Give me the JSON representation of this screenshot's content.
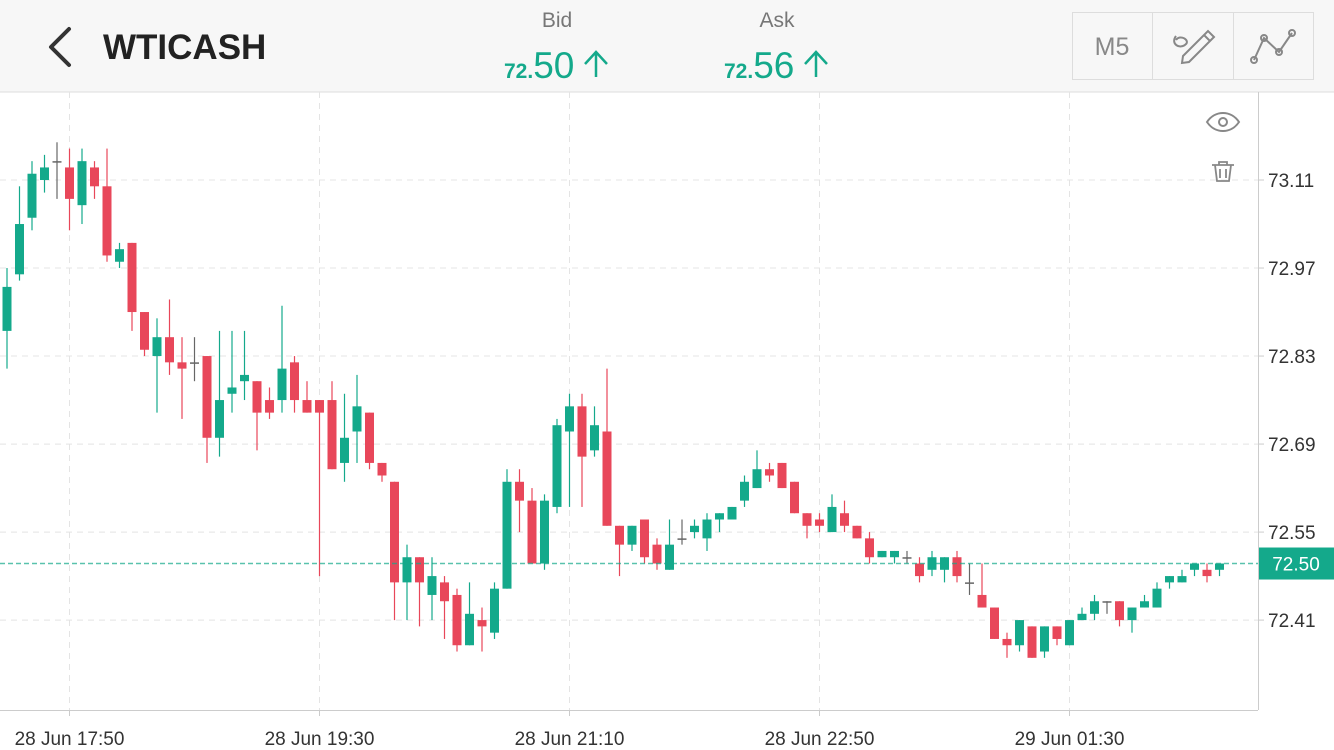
{
  "header": {
    "title": "WTICASH",
    "quotes": [
      {
        "label": "Bid",
        "prefix": "72.",
        "digits": "50"
      },
      {
        "label": "Ask",
        "prefix": "72.",
        "digits": "56"
      }
    ],
    "timeframe": "M5"
  },
  "chart_data": {
    "type": "candlestick",
    "categories": [
      null,
      null,
      null,
      null,
      null,
      "28 Jun 17:50",
      null,
      null,
      null,
      null,
      null,
      null,
      null,
      null,
      null,
      null,
      null,
      null,
      null,
      null,
      null,
      null,
      null,
      null,
      null,
      "28 Jun 19:30",
      null,
      null,
      null,
      null,
      null,
      null,
      null,
      null,
      null,
      null,
      null,
      null,
      null,
      null,
      null,
      null,
      null,
      null,
      null,
      "28 Jun 21:10",
      null,
      null,
      null,
      null,
      null,
      null,
      null,
      null,
      null,
      null,
      null,
      null,
      null,
      null,
      null,
      null,
      null,
      null,
      null,
      "28 Jun 22:50",
      null,
      null,
      null,
      null,
      null,
      null,
      null,
      null,
      null,
      null,
      null,
      null,
      null,
      null,
      null,
      null,
      null,
      null,
      null,
      "29 Jun 01:30",
      null,
      null,
      null,
      null,
      null,
      null,
      null,
      null,
      null,
      null,
      null,
      null
    ],
    "open": [
      72.87,
      72.96,
      73.05,
      73.11,
      73.14,
      73.13,
      73.07,
      73.13,
      73.1,
      72.98,
      73.01,
      72.9,
      72.83,
      72.86,
      72.82,
      72.82,
      72.83,
      72.7,
      72.77,
      72.79,
      72.79,
      72.76,
      72.76,
      72.82,
      72.76,
      72.76,
      72.76,
      72.66,
      72.71,
      72.74,
      72.66,
      72.63,
      72.47,
      72.51,
      72.45,
      72.47,
      72.45,
      72.37,
      72.41,
      72.39,
      72.46,
      72.63,
      72.6,
      72.5,
      72.59,
      72.71,
      72.75,
      72.68,
      72.71,
      72.56,
      72.53,
      72.57,
      72.53,
      72.49,
      72.54,
      72.55,
      72.54,
      72.57,
      72.57,
      72.6,
      72.62,
      72.65,
      72.66,
      72.63,
      72.58,
      72.57,
      72.55,
      72.58,
      72.56,
      72.54,
      72.51,
      72.51,
      72.51,
      72.5,
      72.49,
      72.49,
      72.51,
      72.47,
      72.45,
      72.43,
      72.38,
      72.37,
      72.4,
      72.36,
      72.4,
      72.37,
      72.41,
      72.42,
      72.44,
      72.44,
      72.41,
      72.43,
      72.43,
      72.47,
      72.47,
      72.49,
      72.49,
      72.49
    ],
    "high": [
      72.97,
      73.1,
      73.14,
      73.15,
      73.17,
      73.16,
      73.16,
      73.14,
      73.16,
      73.01,
      73.01,
      72.9,
      72.89,
      72.92,
      72.86,
      72.86,
      72.83,
      72.87,
      72.87,
      72.87,
      72.79,
      72.78,
      72.91,
      72.83,
      72.79,
      72.76,
      72.79,
      72.77,
      72.8,
      72.74,
      72.66,
      72.63,
      72.53,
      72.51,
      72.51,
      72.48,
      72.46,
      72.47,
      72.43,
      72.47,
      72.65,
      72.65,
      72.62,
      72.61,
      72.73,
      72.77,
      72.77,
      72.75,
      72.81,
      72.56,
      72.56,
      72.57,
      72.54,
      72.57,
      72.57,
      72.57,
      72.58,
      72.58,
      72.59,
      72.64,
      72.68,
      72.66,
      72.66,
      72.63,
      72.58,
      72.58,
      72.61,
      72.6,
      72.56,
      72.55,
      72.52,
      72.52,
      72.52,
      72.51,
      72.52,
      72.51,
      72.52,
      72.5,
      72.5,
      72.43,
      72.39,
      72.41,
      72.4,
      72.4,
      72.4,
      72.41,
      72.43,
      72.45,
      72.44,
      72.44,
      72.43,
      72.45,
      72.47,
      72.48,
      72.49,
      72.5,
      72.5,
      72.5
    ],
    "low": [
      72.81,
      72.95,
      73.03,
      73.09,
      73.08,
      73.03,
      73.04,
      73.08,
      72.98,
      72.97,
      72.87,
      72.83,
      72.74,
      72.8,
      72.73,
      72.79,
      72.66,
      72.67,
      72.74,
      72.76,
      72.68,
      72.73,
      72.74,
      72.74,
      72.74,
      72.48,
      72.65,
      72.63,
      72.66,
      72.65,
      72.63,
      72.41,
      72.41,
      72.4,
      72.41,
      72.38,
      72.36,
      72.37,
      72.36,
      72.38,
      72.46,
      72.55,
      72.5,
      72.49,
      72.58,
      72.59,
      72.59,
      72.67,
      72.56,
      72.48,
      72.52,
      72.5,
      72.49,
      72.49,
      72.53,
      72.54,
      72.52,
      72.55,
      72.57,
      72.59,
      72.62,
      72.63,
      72.62,
      72.58,
      72.54,
      72.55,
      72.55,
      72.55,
      72.54,
      72.5,
      72.51,
      72.5,
      72.5,
      72.47,
      72.48,
      72.47,
      72.47,
      72.45,
      72.43,
      72.38,
      72.35,
      72.36,
      72.35,
      72.35,
      72.37,
      72.37,
      72.41,
      72.41,
      72.42,
      72.4,
      72.39,
      72.43,
      72.43,
      72.46,
      72.47,
      72.48,
      72.47,
      72.48
    ],
    "close": [
      72.94,
      73.04,
      73.12,
      73.13,
      73.14,
      73.08,
      73.14,
      73.1,
      72.99,
      73.0,
      72.9,
      72.84,
      72.86,
      72.82,
      72.81,
      72.82,
      72.7,
      72.76,
      72.78,
      72.8,
      72.74,
      72.74,
      72.81,
      72.76,
      72.74,
      72.74,
      72.65,
      72.7,
      72.75,
      72.66,
      72.64,
      72.47,
      72.51,
      72.47,
      72.48,
      72.44,
      72.37,
      72.42,
      72.4,
      72.46,
      72.63,
      72.6,
      72.5,
      72.6,
      72.72,
      72.75,
      72.67,
      72.72,
      72.56,
      72.53,
      72.56,
      72.51,
      72.5,
      72.53,
      72.54,
      72.56,
      72.57,
      72.58,
      72.59,
      72.63,
      72.65,
      72.64,
      72.62,
      72.58,
      72.56,
      72.56,
      72.59,
      72.56,
      72.54,
      72.51,
      72.52,
      72.52,
      72.51,
      72.48,
      72.51,
      72.51,
      72.48,
      72.47,
      72.43,
      72.38,
      72.37,
      72.41,
      72.35,
      72.4,
      72.38,
      72.41,
      72.42,
      72.44,
      72.44,
      72.41,
      72.43,
      72.44,
      72.46,
      72.48,
      72.48,
      72.5,
      72.48,
      72.5
    ],
    "up_color": "#14a98b",
    "down_color": "#e8475a",
    "flat_color": "#666666",
    "ylim": [
      72.267,
      73.25
    ],
    "yticks": [
      73.11,
      72.97,
      72.83,
      72.69,
      72.55,
      72.41
    ],
    "grid": true,
    "last_price": {
      "value": 72.5,
      "label": "72.50"
    },
    "last_price_color": "#14a98b"
  }
}
